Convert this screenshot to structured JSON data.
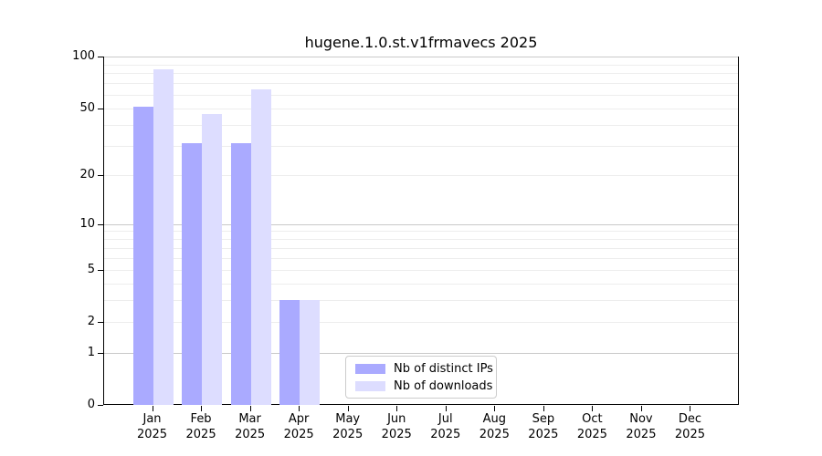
{
  "chart_data": {
    "type": "bar",
    "title": "hugene.1.0.st.v1frmavecs 2025",
    "categories": [
      "Jan",
      "Feb",
      "Mar",
      "Apr",
      "May",
      "Jun",
      "Jul",
      "Aug",
      "Sep",
      "Oct",
      "Nov",
      "Dec"
    ],
    "x_tick_line2": "2025",
    "series": [
      {
        "name": "Nb of distinct IPs",
        "color": "#aaaaff",
        "values": [
          51,
          31,
          31,
          3,
          0,
          0,
          0,
          0,
          0,
          0,
          0,
          0
        ]
      },
      {
        "name": "Nb of downloads",
        "color": "#ddddff",
        "values": [
          84,
          46,
          64,
          3,
          0,
          0,
          0,
          0,
          0,
          0,
          0,
          0
        ]
      }
    ],
    "xlabel": "",
    "ylabel": "",
    "y_scale": "log10(1+x)",
    "y_ticks": [
      0,
      1,
      2,
      5,
      10,
      20,
      50,
      100
    ],
    "ylim": [
      0,
      100
    ],
    "grid": "horizontal, minor lines 2-9/20-90 light, major lines 1/10/100 darker",
    "legend_position": "bottom center-left inside plot"
  },
  "colors": {
    "axis": "#000000",
    "grid_minor": "#ededed",
    "grid_major": "#c9c9c9",
    "legend_border": "#cccccc",
    "background": "#ffffff"
  }
}
